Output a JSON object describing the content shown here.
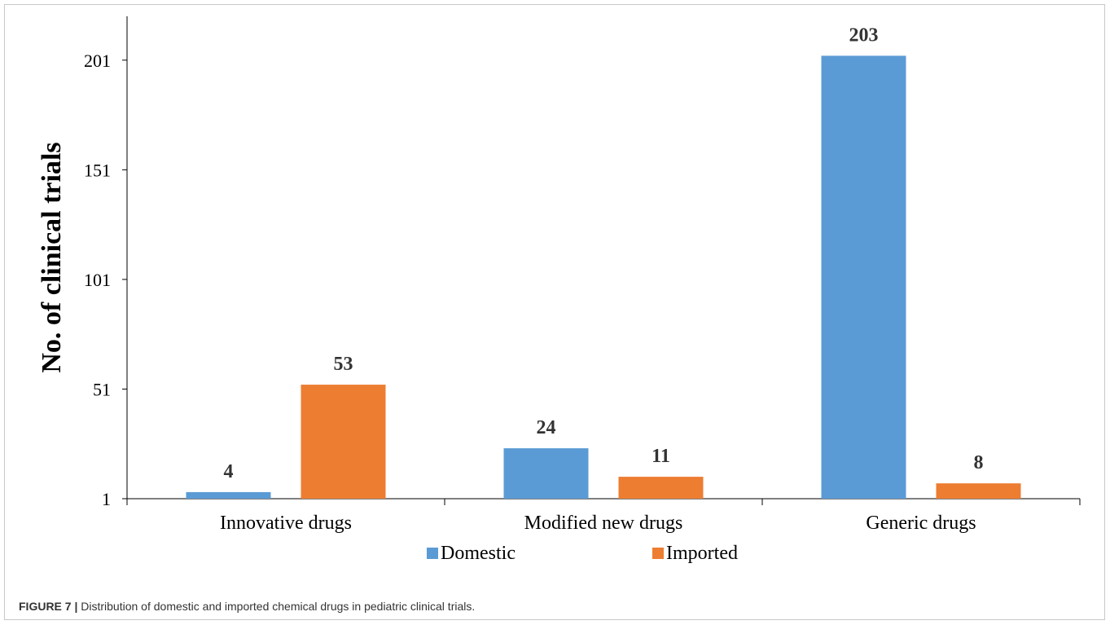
{
  "chart_data": {
    "type": "bar",
    "title": "",
    "xlabel": "",
    "ylabel": "No.  of clinical trials",
    "categories": [
      "Innovative drugs",
      "Modified new drugs",
      "Generic drugs"
    ],
    "series": [
      {
        "name": "Domestic",
        "values": [
          4,
          24,
          203
        ],
        "data_labels": [
          "4",
          "24",
          "203"
        ],
        "color": "#5b9bd5"
      },
      {
        "name": "Imported",
        "values": [
          53,
          11,
          8
        ],
        "data_labels": [
          "53",
          "11",
          "8"
        ],
        "color": "#ed7d31"
      }
    ],
    "ylim": [
      1,
      221
    ],
    "yticks": [
      1,
      51,
      101,
      151,
      201
    ],
    "ytick_labels": [
      "1",
      "51",
      "101",
      "151",
      "201"
    ],
    "grid": false,
    "legend_position": "bottom"
  },
  "caption": {
    "label": "FIGURE 7 |",
    "text": " Distribution of domestic and imported chemical drugs in pediatric clinical trials."
  }
}
